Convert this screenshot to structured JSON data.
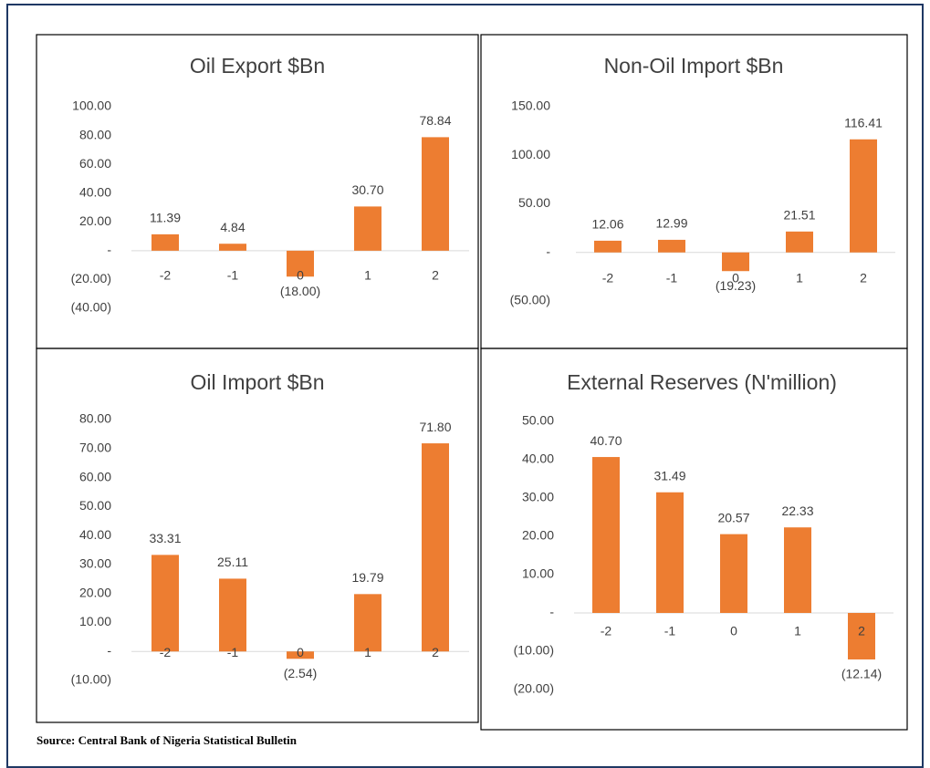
{
  "chart_data": [
    {
      "type": "bar",
      "title": "Oil Export $Bn",
      "categories": [
        "-2",
        "-1",
        "0",
        "1",
        "2"
      ],
      "values": [
        11.39,
        4.84,
        -18.0,
        30.7,
        78.84
      ],
      "value_labels": [
        "11.39",
        "4.84",
        "(18.00)",
        "30.70",
        "78.84"
      ],
      "color": "#ed7d31",
      "ylim": [
        -40,
        100
      ],
      "yticks": [
        {
          "value": -40,
          "label": "(40.00)"
        },
        {
          "value": -20,
          "label": "(20.00)"
        },
        {
          "value": 0,
          "label": "-"
        },
        {
          "value": 20,
          "label": "20.00"
        },
        {
          "value": 40,
          "label": "40.00"
        },
        {
          "value": 60,
          "label": "60.00"
        },
        {
          "value": 80,
          "label": "80.00"
        },
        {
          "value": 100,
          "label": "100.00"
        }
      ],
      "grid": false
    },
    {
      "type": "bar",
      "title": "Non-Oil Import $Bn",
      "categories": [
        "-2",
        "-1",
        "0",
        "1",
        "2"
      ],
      "values": [
        12.06,
        12.99,
        -19.23,
        21.51,
        116.41
      ],
      "value_labels": [
        "12.06",
        "12.99",
        "(19.23)",
        "21.51",
        "116.41"
      ],
      "color": "#ed7d31",
      "ylim": [
        -50,
        150
      ],
      "yticks": [
        {
          "value": -50,
          "label": "(50.00)"
        },
        {
          "value": 0,
          "label": "-"
        },
        {
          "value": 50,
          "label": "50.00"
        },
        {
          "value": 100,
          "label": "100.00"
        },
        {
          "value": 150,
          "label": "150.00"
        }
      ],
      "grid": false
    },
    {
      "type": "bar",
      "title": "Oil Import $Bn",
      "categories": [
        "-2",
        "-1",
        "0",
        "1",
        "2"
      ],
      "values": [
        33.31,
        25.11,
        -2.54,
        19.79,
        71.8
      ],
      "value_labels": [
        "33.31",
        "25.11",
        "(2.54)",
        "19.79",
        "71.80"
      ],
      "color": "#ed7d31",
      "ylim": [
        -10,
        80
      ],
      "yticks": [
        {
          "value": -10,
          "label": "(10.00)"
        },
        {
          "value": 0,
          "label": "-"
        },
        {
          "value": 10,
          "label": "10.00"
        },
        {
          "value": 20,
          "label": "20.00"
        },
        {
          "value": 30,
          "label": "30.00"
        },
        {
          "value": 40,
          "label": "40.00"
        },
        {
          "value": 50,
          "label": "50.00"
        },
        {
          "value": 60,
          "label": "60.00"
        },
        {
          "value": 70,
          "label": "70.00"
        },
        {
          "value": 80,
          "label": "80.00"
        }
      ],
      "grid": false
    },
    {
      "type": "bar",
      "title": "External Reserves (N'million)",
      "categories": [
        "-2",
        "-1",
        "0",
        "1",
        "2"
      ],
      "values": [
        40.7,
        31.49,
        20.57,
        22.33,
        -12.14
      ],
      "value_labels": [
        "40.70",
        "31.49",
        "20.57",
        "22.33",
        "(12.14)"
      ],
      "color": "#ed7d31",
      "ylim": [
        -20,
        50
      ],
      "yticks": [
        {
          "value": -20,
          "label": "(20.00)"
        },
        {
          "value": -10,
          "label": "(10.00)"
        },
        {
          "value": 0,
          "label": "-"
        },
        {
          "value": 10,
          "label": "10.00"
        },
        {
          "value": 20,
          "label": "20.00"
        },
        {
          "value": 30,
          "label": "30.00"
        },
        {
          "value": 40,
          "label": "40.00"
        },
        {
          "value": 50,
          "label": "50.00"
        }
      ],
      "grid": false
    }
  ],
  "source": "Source: Central Bank of Nigeria Statistical Bulletin"
}
